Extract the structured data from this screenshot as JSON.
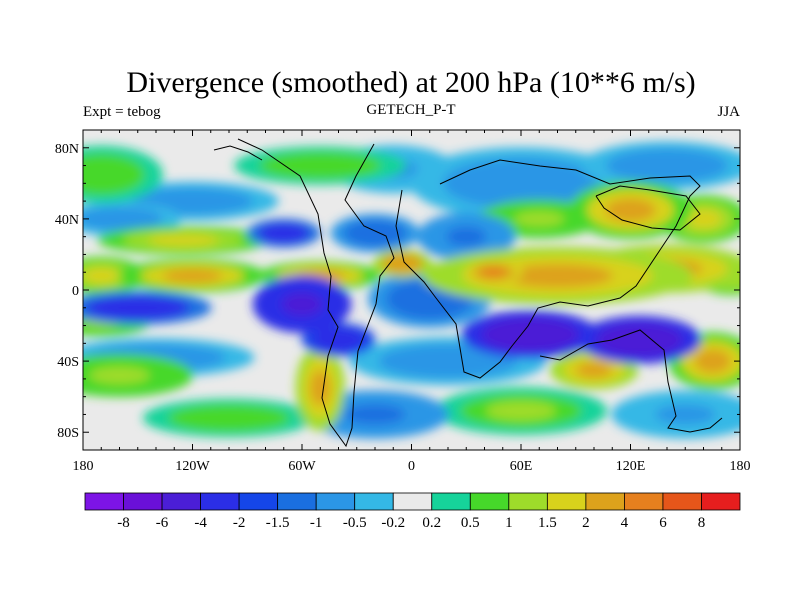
{
  "chart_data": {
    "type": "heatmap",
    "title": "Divergence (smoothed) at 200 hPa (10**6 m/s)",
    "subtitle_left": "Expt = tebog",
    "subtitle_center": "GETECH_P-T",
    "subtitle_right": "JJA",
    "xlabel": "",
    "ylabel": "",
    "xlim": [
      -180,
      180
    ],
    "ylim": [
      -90,
      90
    ],
    "x_ticks": [
      {
        "value": -180,
        "label": "180"
      },
      {
        "value": -120,
        "label": "120W"
      },
      {
        "value": -60,
        "label": "60W"
      },
      {
        "value": 0,
        "label": "0"
      },
      {
        "value": 60,
        "label": "60E"
      },
      {
        "value": 120,
        "label": "120E"
      },
      {
        "value": 180,
        "label": "180"
      }
    ],
    "y_ticks": [
      {
        "value": 80,
        "label": "80N"
      },
      {
        "value": 40,
        "label": "40N"
      },
      {
        "value": 0,
        "label": "0"
      },
      {
        "value": -40,
        "label": "40S"
      },
      {
        "value": -80,
        "label": "80S"
      }
    ],
    "colorbar": {
      "colors": [
        "#7d14e6",
        "#6a10d8",
        "#4b1ed6",
        "#2b2ee6",
        "#1546e8",
        "#1a6fe0",
        "#2b96e6",
        "#34b8e6",
        "#eaeaea",
        "#16d39a",
        "#46d82a",
        "#9edc2a",
        "#d8d21c",
        "#dda21c",
        "#e6801e",
        "#e6561a",
        "#e61e1e"
      ],
      "labels": [
        "-8",
        "-6",
        "-4",
        "-2",
        "-1.5",
        "-1",
        "-0.5",
        "-0.2",
        "0.2",
        "0.5",
        "1",
        "1.5",
        "2",
        "4",
        "6",
        "8"
      ]
    },
    "fields": [
      {
        "lon": 80,
        "lat": 8,
        "value": 2.6,
        "rx": 55,
        "ry": 12
      },
      {
        "lon": 45,
        "lat": 10,
        "value": 4,
        "rx": 12,
        "ry": 5
      },
      {
        "lon": 140,
        "lat": 12,
        "value": 2.5,
        "rx": 35,
        "ry": 10
      },
      {
        "lon": 175,
        "lat": 8,
        "value": 1.8,
        "rx": 15,
        "ry": 8
      },
      {
        "lon": -170,
        "lat": 8,
        "value": 1.8,
        "rx": 18,
        "ry": 8
      },
      {
        "lon": -120,
        "lat": 8,
        "value": 2.2,
        "rx": 30,
        "ry": 7
      },
      {
        "lon": -50,
        "lat": 8,
        "value": 2,
        "rx": 25,
        "ry": 6
      },
      {
        "lon": -5,
        "lat": 15,
        "value": 3,
        "rx": 12,
        "ry": 6
      },
      {
        "lon": -125,
        "lat": 28,
        "value": 1.6,
        "rx": 35,
        "ry": 6
      },
      {
        "lon": 120,
        "lat": 45,
        "value": 2,
        "rx": 25,
        "ry": 12
      },
      {
        "lon": 160,
        "lat": 40,
        "value": 1.8,
        "rx": 18,
        "ry": 10
      },
      {
        "lon": 70,
        "lat": 40,
        "value": 1.2,
        "rx": 25,
        "ry": 8
      },
      {
        "lon": -170,
        "lat": 65,
        "value": 0.9,
        "rx": 25,
        "ry": 12
      },
      {
        "lon": -50,
        "lat": 70,
        "value": 0.8,
        "rx": 35,
        "ry": 8
      },
      {
        "lon": -160,
        "lat": -48,
        "value": 1.2,
        "rx": 30,
        "ry": 9
      },
      {
        "lon": -50,
        "lat": -55,
        "value": 2.5,
        "rx": 10,
        "ry": 18
      },
      {
        "lon": 100,
        "lat": -45,
        "value": 2.5,
        "rx": 18,
        "ry": 8
      },
      {
        "lon": 165,
        "lat": -40,
        "value": 2.2,
        "rx": 18,
        "ry": 12
      },
      {
        "lon": -170,
        "lat": -18,
        "value": 1.3,
        "rx": 20,
        "ry": 6
      },
      {
        "lon": 60,
        "lat": -68,
        "value": 1.0,
        "rx": 35,
        "ry": 10
      },
      {
        "lon": -100,
        "lat": -72,
        "value": 0.8,
        "rx": 35,
        "ry": 8
      },
      {
        "lon": 65,
        "lat": -25,
        "value": -6,
        "rx": 28,
        "ry": 10
      },
      {
        "lon": 125,
        "lat": -28,
        "value": -6,
        "rx": 25,
        "ry": 10
      },
      {
        "lon": -60,
        "lat": -8,
        "value": -5,
        "rx": 20,
        "ry": 12
      },
      {
        "lon": -150,
        "lat": -10,
        "value": -3,
        "rx": 30,
        "ry": 7
      },
      {
        "lon": -40,
        "lat": -28,
        "value": -4,
        "rx": 15,
        "ry": 7
      },
      {
        "lon": -70,
        "lat": 32,
        "value": -3,
        "rx": 15,
        "ry": 6
      },
      {
        "lon": -20,
        "lat": 32,
        "value": -1.5,
        "rx": 18,
        "ry": 8
      },
      {
        "lon": 30,
        "lat": 30,
        "value": -1.2,
        "rx": 20,
        "ry": 10
      },
      {
        "lon": 60,
        "lat": 60,
        "value": -1,
        "rx": 45,
        "ry": 15
      },
      {
        "lon": 140,
        "lat": 70,
        "value": -1,
        "rx": 35,
        "ry": 10
      },
      {
        "lon": -120,
        "lat": 50,
        "value": -0.7,
        "rx": 35,
        "ry": 8
      },
      {
        "lon": 10,
        "lat": -5,
        "value": -1.5,
        "rx": 25,
        "ry": 12
      },
      {
        "lon": 20,
        "lat": -40,
        "value": -0.8,
        "rx": 40,
        "ry": 10
      },
      {
        "lon": -20,
        "lat": -70,
        "value": -1.2,
        "rx": 30,
        "ry": 10
      },
      {
        "lon": -140,
        "lat": -38,
        "value": -1,
        "rx": 40,
        "ry": 8
      },
      {
        "lon": 150,
        "lat": -70,
        "value": -0.6,
        "rx": 30,
        "ry": 10
      },
      {
        "lon": -160,
        "lat": 40,
        "value": -0.7,
        "rx": 25,
        "ry": 7
      },
      {
        "lon": -10,
        "lat": 68,
        "value": -0.6,
        "rx": 25,
        "ry": 10
      }
    ]
  }
}
